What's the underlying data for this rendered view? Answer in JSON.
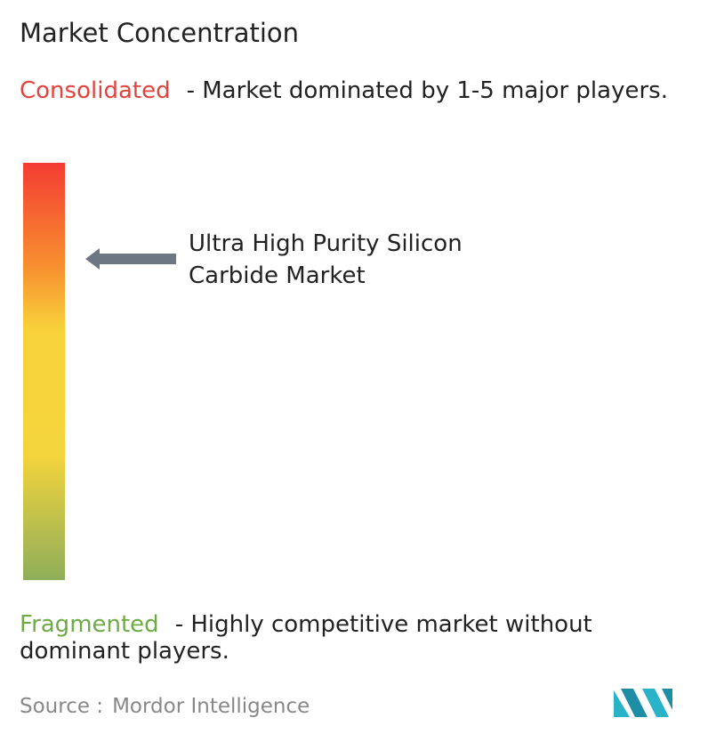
{
  "title": "Market Concentration",
  "consolidated": {
    "label": "Consolidated",
    "description": "- Market dominated by 1-5 major players."
  },
  "market": {
    "label": "Ultra High Purity Silicon Carbide Market"
  },
  "fragmented": {
    "label": "Fragmented",
    "description": "- Highly competitive market without dominant players."
  },
  "source": {
    "label": "Source :",
    "name": "Mordor Intelligence"
  }
}
